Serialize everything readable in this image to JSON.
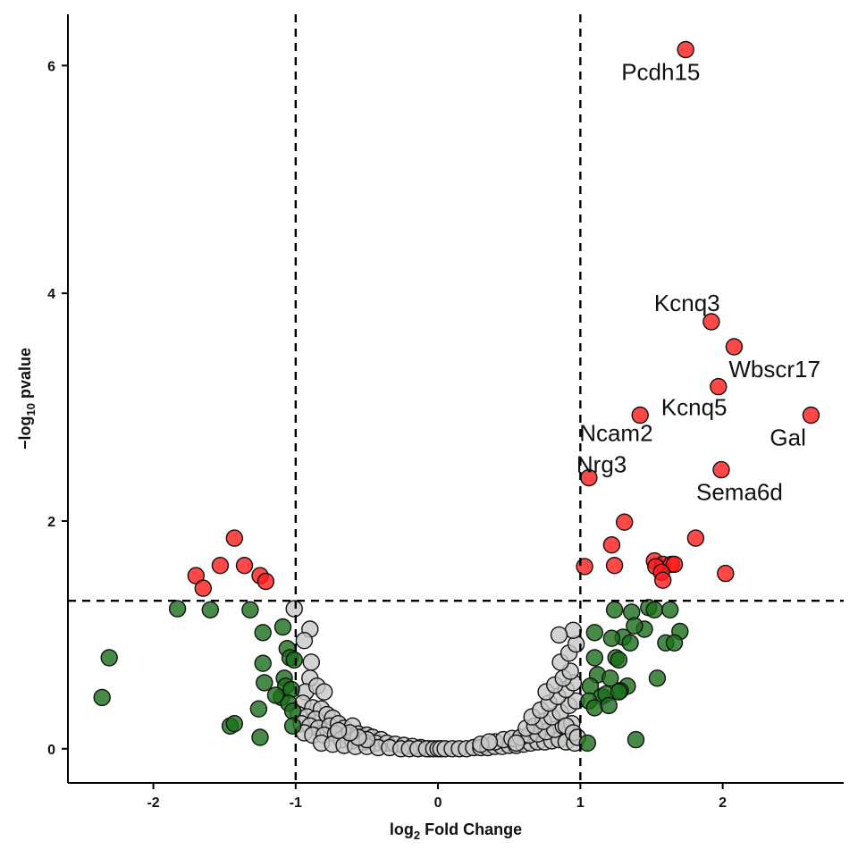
{
  "chart_data": {
    "type": "scatter",
    "title": "",
    "xlabel": {
      "prefix": "log",
      "sub": "2",
      "suffix": " Fold Change"
    },
    "ylabel": {
      "prefix": "−log",
      "sub": "10",
      "suffix": " pvalue"
    },
    "xlim": [
      -2.6,
      2.85
    ],
    "ylim": [
      -0.3,
      6.45
    ],
    "xticks": [
      -2,
      -1,
      0,
      1,
      2
    ],
    "yticks": [
      0,
      2,
      4,
      6
    ],
    "xtick_labels": [
      "-2",
      "-1",
      "0",
      "1",
      "2"
    ],
    "ytick_labels": [
      "0",
      "2",
      "4",
      "6"
    ],
    "thresholds": {
      "fc": [
        -1,
        1
      ],
      "pvalue": 1.3
    },
    "grid": false,
    "colors": {
      "significant": "#ff1a1a",
      "fc_only": "#1a6e1a",
      "not_significant": "#c8c8c8",
      "outline": "#111111"
    },
    "series": [
      {
        "key": "significant",
        "points": [
          [
            1.74,
            6.14
          ],
          [
            1.92,
            3.75
          ],
          [
            2.08,
            3.53
          ],
          [
            1.97,
            3.18
          ],
          [
            1.42,
            2.93
          ],
          [
            2.62,
            2.93
          ],
          [
            1.06,
            2.38
          ],
          [
            1.99,
            2.45
          ],
          [
            1.31,
            1.99
          ],
          [
            1.22,
            1.79
          ],
          [
            1.81,
            1.85
          ],
          [
            1.52,
            1.65
          ],
          [
            1.58,
            1.62
          ],
          [
            1.64,
            1.62
          ],
          [
            1.66,
            1.62
          ],
          [
            1.53,
            1.6
          ],
          [
            1.57,
            1.55
          ],
          [
            1.58,
            1.48
          ],
          [
            1.24,
            1.61
          ],
          [
            1.03,
            1.6
          ],
          [
            2.02,
            1.54
          ],
          [
            -1.43,
            1.85
          ],
          [
            -1.53,
            1.61
          ],
          [
            -1.36,
            1.61
          ],
          [
            -1.7,
            1.52
          ],
          [
            -1.65,
            1.41
          ],
          [
            -1.25,
            1.52
          ],
          [
            -1.21,
            1.47
          ]
        ]
      },
      {
        "key": "fc_only",
        "points": [
          [
            -2.36,
            0.45
          ],
          [
            -2.31,
            0.8
          ],
          [
            -1.83,
            1.23
          ],
          [
            -1.6,
            1.22
          ],
          [
            -1.32,
            1.22
          ],
          [
            -1.46,
            0.2
          ],
          [
            -1.43,
            0.22
          ],
          [
            -1.25,
            0.1
          ],
          [
            -1.26,
            0.35
          ],
          [
            -1.23,
            1.02
          ],
          [
            -1.23,
            0.75
          ],
          [
            -1.09,
            1.07
          ],
          [
            -1.06,
            0.88
          ],
          [
            -1.04,
            0.8
          ],
          [
            -1.08,
            0.62
          ],
          [
            -1.1,
            0.45
          ],
          [
            -1.07,
            0.55
          ],
          [
            -1.03,
            0.52
          ],
          [
            -1.05,
            0.4
          ],
          [
            -1.02,
            0.33
          ],
          [
            -1.02,
            0.2
          ],
          [
            -1.22,
            0.58
          ],
          [
            -1.14,
            0.47
          ],
          [
            -1.01,
            0.78
          ],
          [
            1.24,
            1.22
          ],
          [
            1.36,
            1.2
          ],
          [
            1.48,
            1.24
          ],
          [
            1.52,
            1.22
          ],
          [
            1.63,
            1.22
          ],
          [
            1.45,
            1.05
          ],
          [
            1.38,
            1.08
          ],
          [
            1.1,
            1.02
          ],
          [
            1.3,
            0.98
          ],
          [
            1.22,
            0.97
          ],
          [
            1.35,
            0.93
          ],
          [
            1.6,
            0.93
          ],
          [
            1.7,
            1.03
          ],
          [
            1.66,
            0.93
          ],
          [
            1.1,
            0.8
          ],
          [
            1.25,
            0.8
          ],
          [
            1.27,
            0.78
          ],
          [
            1.12,
            0.65
          ],
          [
            1.21,
            0.62
          ],
          [
            1.54,
            0.62
          ],
          [
            1.07,
            0.55
          ],
          [
            1.15,
            0.46
          ],
          [
            1.33,
            0.55
          ],
          [
            1.28,
            0.51
          ],
          [
            1.18,
            0.48
          ],
          [
            1.06,
            0.42
          ],
          [
            1.1,
            0.36
          ],
          [
            1.2,
            0.38
          ],
          [
            1.27,
            0.5
          ],
          [
            1.05,
            0.05
          ],
          [
            1.39,
            0.08
          ]
        ]
      },
      {
        "key": "not_significant",
        "points": [
          [
            -1.01,
            1.23
          ],
          [
            -0.9,
            1.05
          ],
          [
            -0.94,
            0.95
          ],
          [
            -0.89,
            0.76
          ],
          [
            -0.9,
            0.62
          ],
          [
            -0.93,
            0.5
          ],
          [
            -0.85,
            0.55
          ],
          [
            -0.8,
            0.5
          ],
          [
            -0.95,
            0.4
          ],
          [
            -0.88,
            0.36
          ],
          [
            -0.82,
            0.35
          ],
          [
            -0.98,
            0.3
          ],
          [
            -0.92,
            0.28
          ],
          [
            -0.86,
            0.26
          ],
          [
            -0.78,
            0.3
          ],
          [
            -0.74,
            0.27
          ],
          [
            -0.96,
            0.22
          ],
          [
            -0.9,
            0.2
          ],
          [
            -0.84,
            0.18
          ],
          [
            -0.76,
            0.2
          ],
          [
            -0.7,
            0.22
          ],
          [
            -0.66,
            0.18
          ],
          [
            -0.6,
            0.2
          ],
          [
            -0.94,
            0.14
          ],
          [
            -0.88,
            0.12
          ],
          [
            -0.8,
            0.12
          ],
          [
            -0.72,
            0.13
          ],
          [
            -0.64,
            0.12
          ],
          [
            -0.56,
            0.13
          ],
          [
            -0.5,
            0.12
          ],
          [
            -0.46,
            0.1
          ],
          [
            -0.4,
            0.08
          ],
          [
            -0.68,
            0.08
          ],
          [
            -0.6,
            0.07
          ],
          [
            -0.52,
            0.06
          ],
          [
            -0.44,
            0.05
          ],
          [
            -0.36,
            0.05
          ],
          [
            -0.3,
            0.04
          ],
          [
            -0.24,
            0.03
          ],
          [
            -0.18,
            0.02
          ],
          [
            -0.12,
            0.01
          ],
          [
            -0.06,
            0.0
          ],
          [
            -0.82,
            0.05
          ],
          [
            -0.74,
            0.04
          ],
          [
            -0.66,
            0.03
          ],
          [
            -0.58,
            0.02
          ],
          [
            -0.5,
            0.02
          ],
          [
            -0.42,
            0.01
          ],
          [
            -0.34,
            0.01
          ],
          [
            -0.26,
            0.0
          ],
          [
            -0.2,
            0.0
          ],
          [
            -0.14,
            0.0
          ],
          [
            -0.08,
            0.0
          ],
          [
            -0.03,
            0.0
          ],
          [
            0.0,
            0.0
          ],
          [
            0.02,
            0.0
          ],
          [
            0.05,
            0.0
          ],
          [
            0.1,
            0.0
          ],
          [
            0.15,
            0.0
          ],
          [
            0.2,
            0.0
          ],
          [
            0.25,
            0.01
          ],
          [
            0.3,
            0.01
          ],
          [
            0.35,
            0.01
          ],
          [
            0.4,
            0.02
          ],
          [
            0.45,
            0.02
          ],
          [
            0.5,
            0.03
          ],
          [
            0.55,
            0.03
          ],
          [
            0.6,
            0.04
          ],
          [
            0.65,
            0.05
          ],
          [
            0.7,
            0.06
          ],
          [
            0.75,
            0.06
          ],
          [
            0.8,
            0.07
          ],
          [
            0.85,
            0.08
          ],
          [
            0.9,
            0.06
          ],
          [
            0.96,
            0.05
          ],
          [
            0.4,
            0.06
          ],
          [
            0.46,
            0.08
          ],
          [
            0.52,
            0.09
          ],
          [
            0.58,
            0.1
          ],
          [
            0.64,
            0.12
          ],
          [
            0.7,
            0.13
          ],
          [
            0.76,
            0.15
          ],
          [
            0.82,
            0.17
          ],
          [
            0.88,
            0.2
          ],
          [
            0.94,
            0.22
          ],
          [
            0.62,
            0.18
          ],
          [
            0.68,
            0.2
          ],
          [
            0.74,
            0.24
          ],
          [
            0.8,
            0.28
          ],
          [
            0.86,
            0.32
          ],
          [
            0.92,
            0.38
          ],
          [
            0.97,
            0.42
          ],
          [
            0.66,
            0.28
          ],
          [
            0.72,
            0.34
          ],
          [
            0.78,
            0.4
          ],
          [
            0.84,
            0.46
          ],
          [
            0.9,
            0.52
          ],
          [
            0.95,
            0.58
          ],
          [
            0.76,
            0.5
          ],
          [
            0.82,
            0.56
          ],
          [
            0.88,
            0.62
          ],
          [
            0.93,
            0.68
          ],
          [
            0.86,
            0.76
          ],
          [
            0.92,
            0.84
          ],
          [
            0.97,
            0.92
          ],
          [
            0.95,
            1.04
          ],
          [
            0.85,
            1.0
          ],
          [
            0.9,
            0.2
          ],
          [
            0.95,
            0.14
          ],
          [
            0.98,
            0.1
          ],
          [
            0.3,
            0.04
          ],
          [
            0.36,
            0.06
          ],
          [
            0.55,
            0.05
          ],
          [
            -0.5,
            0.08
          ],
          [
            -0.56,
            0.1
          ],
          [
            -0.62,
            0.14
          ],
          [
            -0.7,
            0.16
          ]
        ]
      }
    ],
    "annotations": [
      {
        "text": "Pcdh15",
        "x": 1.74,
        "y": 6.14
      },
      {
        "text": "Kcnq3",
        "x": 1.92,
        "y": 3.75
      },
      {
        "text": "Wbscr17",
        "x": 2.08,
        "y": 3.53
      },
      {
        "text": "Kcnq5",
        "x": 1.97,
        "y": 3.18
      },
      {
        "text": "Gal",
        "x": 2.62,
        "y": 2.93
      },
      {
        "text": "Ncam2",
        "x": 1.42,
        "y": 2.93
      },
      {
        "text": "Nrg3",
        "x": 1.06,
        "y": 2.38
      },
      {
        "text": "Sema6d",
        "x": 1.99,
        "y": 2.45
      }
    ]
  }
}
